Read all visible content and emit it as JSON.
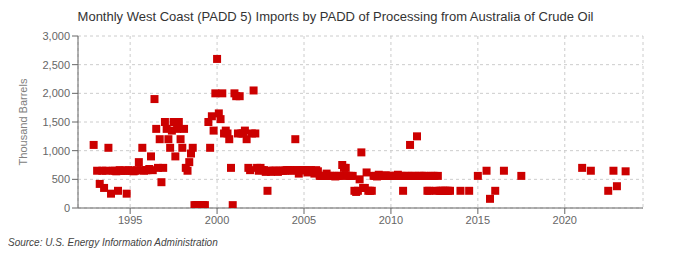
{
  "chart_data": {
    "type": "scatter",
    "title": "Monthly West Coast (PADD 5) Imports by PADD of Processing from Australia of Crude Oil",
    "y_label": "Thousand Barrels",
    "annotations": [
      "Source: U.S. Energy Information Administration"
    ],
    "color": "#cc0000",
    "marker": "square",
    "grid": true,
    "xlim": [
      1992.0,
      2024.5
    ],
    "ylim": [
      0,
      3000
    ],
    "xticks": [
      1995,
      2000,
      2005,
      2010,
      2015,
      2020
    ],
    "yticks": [
      0,
      500,
      {
        "value": 1000,
        "label": "1,000"
      },
      {
        "value": 1500,
        "label": "1,500"
      },
      {
        "value": 2000,
        "label": "2,000"
      },
      {
        "value": 2500,
        "label": "2,500"
      },
      {
        "value": 3000,
        "label": "3,000"
      }
    ],
    "x": [
      1992.9,
      1993.1,
      1993.25,
      1993.4,
      1993.5,
      1993.6,
      1993.75,
      1993.9,
      1994.0,
      1994.1,
      1994.2,
      1994.3,
      1994.4,
      1994.5,
      1994.6,
      1994.7,
      1994.8,
      1994.9,
      1995.0,
      1995.1,
      1995.2,
      1995.3,
      1995.4,
      1995.5,
      1995.6,
      1995.7,
      1995.8,
      1995.9,
      1996.0,
      1996.1,
      1996.2,
      1996.3,
      1996.4,
      1996.5,
      1996.6,
      1996.7,
      1996.8,
      1996.9,
      1997.0,
      1997.1,
      1997.2,
      1997.3,
      1997.4,
      1997.5,
      1997.6,
      1997.7,
      1997.8,
      1997.9,
      1998.0,
      1998.1,
      1998.2,
      1998.3,
      1998.4,
      1998.5,
      1998.6,
      1998.7,
      1998.8,
      1998.9,
      1999.0,
      1999.1,
      1999.2,
      1999.3,
      1999.5,
      1999.6,
      1999.7,
      1999.8,
      1999.9,
      2000.0,
      2000.1,
      2000.2,
      2000.3,
      2000.4,
      2000.5,
      2000.6,
      2000.7,
      2000.8,
      2000.9,
      2001.0,
      2001.1,
      2001.2,
      2001.3,
      2001.4,
      2001.5,
      2001.6,
      2001.7,
      2001.8,
      2001.9,
      2002.0,
      2002.1,
      2002.2,
      2002.3,
      2002.4,
      2002.5,
      2002.6,
      2002.7,
      2002.8,
      2002.9,
      2003.0,
      2003.1,
      2003.2,
      2003.3,
      2003.4,
      2003.5,
      2003.6,
      2003.7,
      2003.8,
      2003.9,
      2004.0,
      2004.1,
      2004.2,
      2004.3,
      2004.4,
      2004.5,
      2004.6,
      2004.7,
      2004.8,
      2004.9,
      2005.0,
      2005.1,
      2005.2,
      2005.3,
      2005.4,
      2005.5,
      2005.6,
      2005.7,
      2005.8,
      2005.9,
      2006.0,
      2006.1,
      2006.2,
      2006.3,
      2006.4,
      2006.5,
      2006.6,
      2006.7,
      2006.8,
      2006.9,
      2007.0,
      2007.1,
      2007.2,
      2007.3,
      2007.4,
      2007.5,
      2007.6,
      2007.7,
      2007.8,
      2007.9,
      2008.0,
      2008.1,
      2008.2,
      2008.3,
      2008.4,
      2008.5,
      2008.6,
      2008.7,
      2008.8,
      2008.9,
      2009.0,
      2009.1,
      2009.2,
      2009.3,
      2009.4,
      2009.5,
      2009.6,
      2009.7,
      2009.8,
      2009.9,
      2010.0,
      2010.1,
      2010.2,
      2010.3,
      2010.4,
      2010.5,
      2010.6,
      2010.7,
      2010.8,
      2010.9,
      2011.0,
      2011.1,
      2011.2,
      2011.3,
      2011.4,
      2011.5,
      2011.6,
      2011.7,
      2011.8,
      2011.9,
      2012.0,
      2012.1,
      2012.2,
      2012.3,
      2012.4,
      2012.5,
      2012.6,
      2012.7,
      2012.8,
      2012.9,
      2013.0,
      2013.1,
      2013.2,
      2013.3,
      2013.4,
      2014.0,
      2014.5,
      2015.0,
      2015.5,
      2015.7,
      2016.0,
      2016.5,
      2017.5,
      2021.0,
      2021.5,
      2022.5,
      2022.8,
      2023.0,
      2023.5
    ],
    "values": [
      1100,
      650,
      420,
      650,
      350,
      650,
      1050,
      250,
      650,
      650,
      640,
      300,
      660,
      650,
      650,
      650,
      250,
      660,
      650,
      650,
      640,
      650,
      660,
      800,
      660,
      1050,
      650,
      660,
      660,
      680,
      900,
      660,
      1900,
      1380,
      700,
      1200,
      450,
      700,
      1500,
      1380,
      1200,
      1050,
      1350,
      1500,
      900,
      1380,
      1500,
      1200,
      1050,
      1380,
      700,
      650,
      800,
      950,
      1050,
      50,
      50,
      50,
      50,
      50,
      50,
      50,
      1500,
      1050,
      1600,
      1350,
      2000,
      2600,
      1650,
      1550,
      2000,
      1300,
      1350,
      1300,
      1200,
      700,
      50,
      2000,
      1950,
      1300,
      1950,
      1300,
      1300,
      1350,
      1200,
      700,
      660,
      1300,
      2050,
      1300,
      700,
      650,
      700,
      660,
      660,
      630,
      300,
      650,
      630,
      650,
      650,
      650,
      630,
      650,
      650,
      650,
      650,
      660,
      660,
      660,
      650,
      660,
      1200,
      660,
      600,
      660,
      660,
      660,
      660,
      620,
      660,
      660,
      640,
      600,
      660,
      640,
      560,
      560,
      560,
      560,
      600,
      560,
      560,
      560,
      560,
      550,
      560,
      560,
      560,
      750,
      700,
      700,
      560,
      560,
      560,
      560,
      300,
      280,
      300,
      500,
      970,
      350,
      350,
      620,
      300,
      300,
      300,
      560,
      560,
      550,
      580,
      560,
      560,
      560,
      570,
      560,
      560,
      560,
      560,
      560,
      560,
      580,
      560,
      560,
      300,
      560,
      560,
      560,
      1100,
      560,
      560,
      560,
      1250,
      560,
      560,
      560,
      560,
      560,
      300,
      300,
      560,
      560,
      560,
      300,
      560,
      300,
      300,
      300,
      300,
      300,
      300,
      300,
      300,
      300,
      560,
      650,
      160,
      300,
      650,
      560,
      700,
      650,
      300,
      650,
      380,
      640
    ]
  }
}
